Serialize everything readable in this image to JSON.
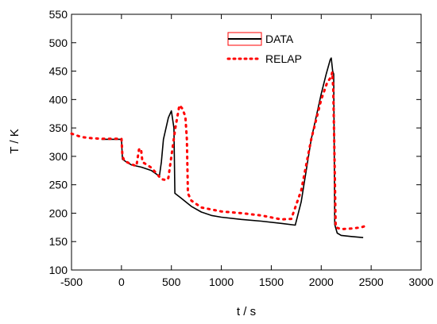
{
  "chart_data": {
    "type": "line",
    "title": "",
    "xlabel": "t / s",
    "ylabel": "T / K",
    "xlim": [
      -500,
      3000
    ],
    "ylim": [
      100,
      550
    ],
    "x_ticks": [
      -500,
      0,
      500,
      1000,
      1500,
      2000,
      2500,
      3000
    ],
    "y_ticks": [
      100,
      150,
      200,
      250,
      300,
      350,
      400,
      450,
      500,
      550
    ],
    "grid": false,
    "legend_position": "top-right",
    "series": [
      {
        "name": "DATA",
        "color": "#000000",
        "style": "solid",
        "points": [
          [
            -200,
            330
          ],
          [
            0,
            330
          ],
          [
            10,
            295
          ],
          [
            50,
            290
          ],
          [
            100,
            285
          ],
          [
            200,
            281
          ],
          [
            300,
            275
          ],
          [
            380,
            265
          ],
          [
            400,
            290
          ],
          [
            420,
            330
          ],
          [
            470,
            368
          ],
          [
            500,
            380
          ],
          [
            525,
            350
          ],
          [
            535,
            235
          ],
          [
            600,
            226
          ],
          [
            700,
            212
          ],
          [
            800,
            202
          ],
          [
            900,
            196
          ],
          [
            1000,
            193
          ],
          [
            1200,
            189
          ],
          [
            1400,
            186
          ],
          [
            1600,
            182
          ],
          [
            1740,
            179
          ],
          [
            1800,
            220
          ],
          [
            1900,
            330
          ],
          [
            2000,
            410
          ],
          [
            2050,
            445
          ],
          [
            2090,
            470
          ],
          [
            2100,
            473
          ],
          [
            2115,
            450
          ],
          [
            2125,
            445
          ],
          [
            2135,
            180
          ],
          [
            2160,
            165
          ],
          [
            2200,
            161
          ],
          [
            2300,
            159
          ],
          [
            2420,
            157
          ]
        ]
      },
      {
        "name": "RELAP",
        "color": "#ff0000",
        "style": "dotted",
        "points": [
          [
            -500,
            340
          ],
          [
            -400,
            334
          ],
          [
            -300,
            332
          ],
          [
            -200,
            331
          ],
          [
            0,
            331
          ],
          [
            10,
            300
          ],
          [
            30,
            292
          ],
          [
            100,
            286
          ],
          [
            150,
            283
          ],
          [
            175,
            312
          ],
          [
            195,
            314
          ],
          [
            210,
            290
          ],
          [
            300,
            280
          ],
          [
            400,
            260
          ],
          [
            450,
            258
          ],
          [
            470,
            262
          ],
          [
            540,
            350
          ],
          [
            580,
            390
          ],
          [
            610,
            384
          ],
          [
            640,
            370
          ],
          [
            655,
            330
          ],
          [
            665,
            235
          ],
          [
            700,
            222
          ],
          [
            800,
            210
          ],
          [
            1000,
            203
          ],
          [
            1200,
            200
          ],
          [
            1400,
            196
          ],
          [
            1600,
            189
          ],
          [
            1700,
            190
          ],
          [
            1800,
            240
          ],
          [
            1900,
            330
          ],
          [
            2000,
            400
          ],
          [
            2060,
            430
          ],
          [
            2100,
            440
          ],
          [
            2110,
            448
          ],
          [
            2120,
            420
          ],
          [
            2130,
            330
          ],
          [
            2145,
            175
          ],
          [
            2200,
            172
          ],
          [
            2300,
            173
          ],
          [
            2400,
            175
          ],
          [
            2450,
            178
          ]
        ]
      }
    ]
  }
}
